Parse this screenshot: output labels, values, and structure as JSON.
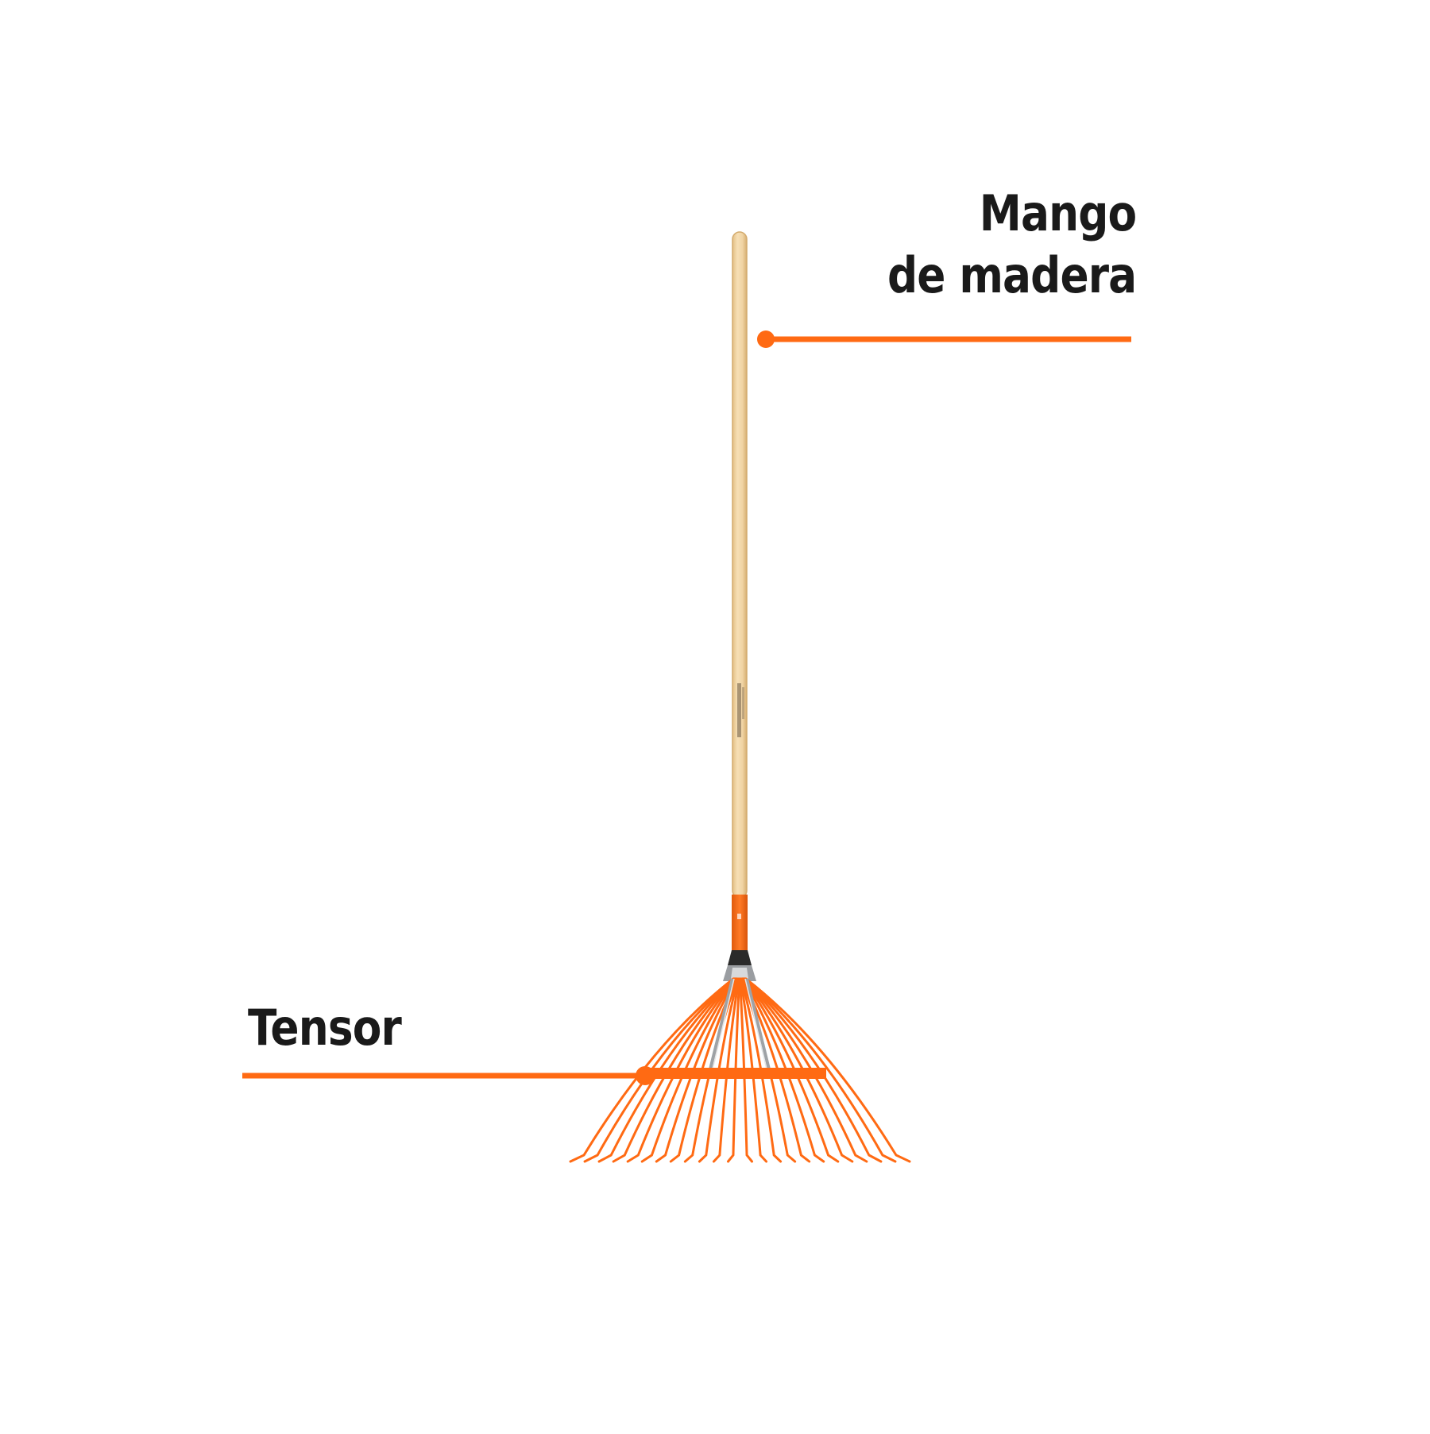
{
  "callouts": {
    "handle": {
      "line1": "Mango",
      "line2": "de madera"
    },
    "tensioner": {
      "text": "Tensor"
    }
  },
  "colors": {
    "accent": "#ff6a13",
    "handle_wood": "#f0d4a4",
    "handle_edge": "#d9b47a",
    "label_text": "#1a1a1a",
    "ferrule": "#ff6a13",
    "metal": "#8a8d91"
  },
  "product": {
    "type": "leaf rake",
    "tine_count": 24
  }
}
